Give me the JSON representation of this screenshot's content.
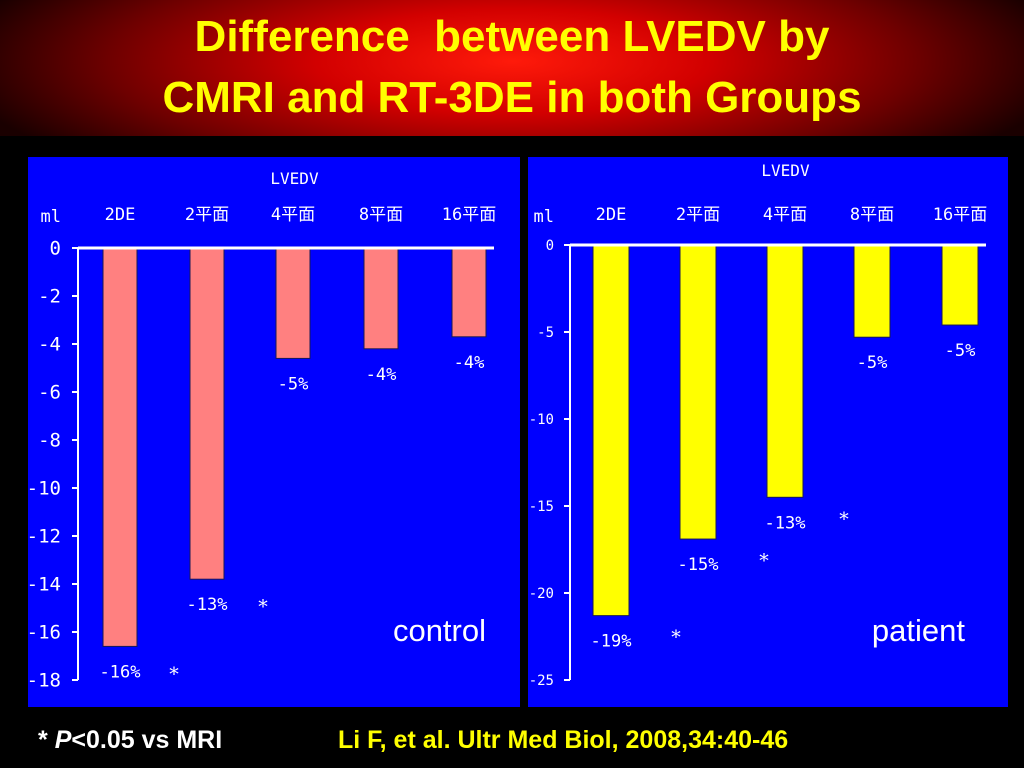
{
  "title": {
    "line1": "Difference  between LVEDV by",
    "line2": "CMRI and RT-3DE in both Groups"
  },
  "colors": {
    "title_text": "#ffff00",
    "panel_bg": "#0000ff",
    "control_bar": "#ff8080",
    "patient_bar": "#ffff00",
    "axis": "#ffffff"
  },
  "chart_data": [
    {
      "type": "bar",
      "title": "LVEDV",
      "ylabel": "ml",
      "group_label": "control",
      "categories": [
        "2DE",
        "2平面",
        "4平面",
        "8平面",
        "16平面"
      ],
      "values": [
        -16.6,
        -13.8,
        -4.6,
        -4.2,
        -3.7
      ],
      "bar_labels": [
        "-16%",
        "-13%",
        "-5%",
        "-4%",
        "-4%"
      ],
      "significance": [
        true,
        true,
        false,
        false,
        false
      ],
      "ylim": [
        -18,
        0
      ],
      "yticks": [
        0,
        -2,
        -4,
        -6,
        -8,
        -10,
        -12,
        -14,
        -16,
        -18
      ],
      "ytick_labels": [
        "0",
        "-2",
        "-4",
        "-6",
        "-8",
        "-10",
        "-12",
        "-14",
        "-16",
        "-18"
      ],
      "bar_color": "#ff8080"
    },
    {
      "type": "bar",
      "title": "LVEDV",
      "ylabel": "ml",
      "group_label": "patient",
      "categories": [
        "2DE",
        "2平面",
        "4平面",
        "8平面",
        "16平面"
      ],
      "values": [
        -21.3,
        -16.9,
        -14.5,
        -5.3,
        -4.6
      ],
      "bar_labels": [
        "-19%",
        "-15%",
        "-13%",
        "-5%",
        "-5%"
      ],
      "significance": [
        true,
        true,
        true,
        false,
        false
      ],
      "ylim": [
        -25,
        0
      ],
      "yticks": [
        0,
        -5,
        -10,
        -15,
        -20,
        -25
      ],
      "ytick_labels": [
        "0",
        "-5",
        "-10",
        "-15",
        "-20",
        "-25"
      ],
      "bar_color": "#ffff00"
    }
  ],
  "footer": {
    "note_star": "* ",
    "note_p": "P",
    "note_rest": "<0.05 vs MRI",
    "citation": "Li F, et al. Ultr Med Biol, 2008,34:40-46"
  }
}
